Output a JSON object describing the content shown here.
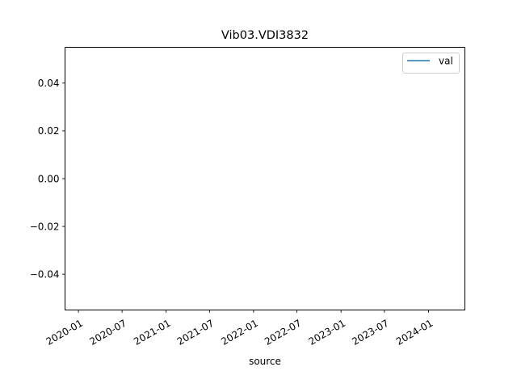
{
  "chart_data": {
    "type": "line",
    "title": "Vib03.VDI3832",
    "xlabel": "source",
    "ylabel": "",
    "x_tick_labels": [
      "2020-01",
      "2020-07",
      "2021-01",
      "2021-07",
      "2022-01",
      "2022-07",
      "2023-01",
      "2023-07",
      "2024-01"
    ],
    "y_tick_labels": [
      "0.04",
      "0.02",
      "0.00",
      "−0.02",
      "−0.04"
    ],
    "y_ticks": [
      0.04,
      0.02,
      0.0,
      -0.02,
      -0.04
    ],
    "ylim": [
      -0.055,
      0.055
    ],
    "xlim": [
      "2019-11-06",
      "2024-06-01"
    ],
    "series": [
      {
        "name": "val",
        "color": "#1f77b4",
        "x": [],
        "y": []
      }
    ],
    "legend": {
      "position": "upper right"
    },
    "grid": false
  }
}
